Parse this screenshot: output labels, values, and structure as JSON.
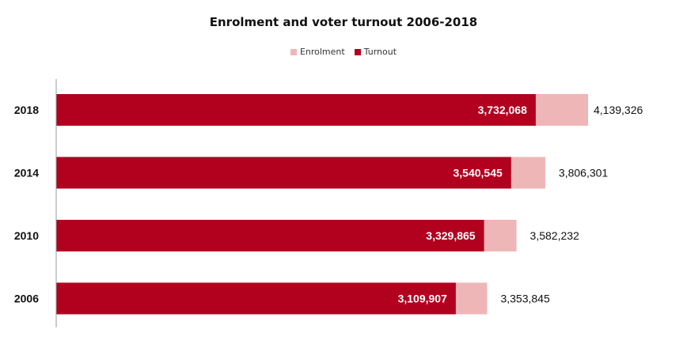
{
  "chart_data": {
    "type": "bar",
    "orientation": "horizontal",
    "stacked": false,
    "overlapped": true,
    "title": "Enrolment and voter turnout 2006-2018",
    "categories": [
      "2018",
      "2014",
      "2010",
      "2006"
    ],
    "series": [
      {
        "name": "Enrolment",
        "color": "#efb6b7",
        "values": [
          4139326,
          3806301,
          3582232,
          3353845
        ],
        "labels": [
          "4,139,326",
          "3,806,301",
          "3,582,232",
          "3,353,845"
        ]
      },
      {
        "name": "Turnout",
        "color": "#b2001f",
        "values": [
          3732068,
          3540545,
          3329865,
          3109907
        ],
        "labels": [
          "3,732,068",
          "3,540,545",
          "3,329,865",
          "3,109,907"
        ]
      }
    ],
    "xlim": [
      0,
      4500000
    ],
    "legend_position": "top-center",
    "grid": false
  }
}
